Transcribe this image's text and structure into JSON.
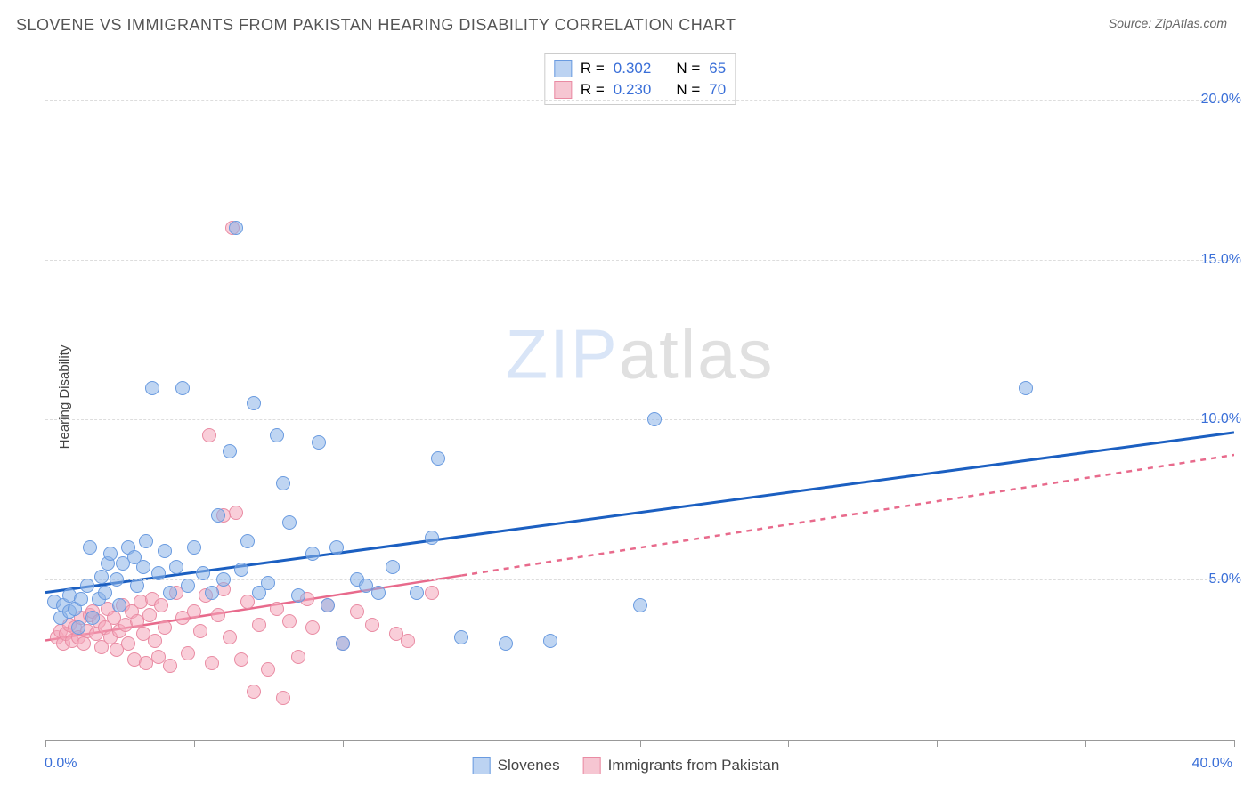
{
  "header": {
    "title": "SLOVENE VS IMMIGRANTS FROM PAKISTAN HEARING DISABILITY CORRELATION CHART",
    "source": "Source: ZipAtlas.com"
  },
  "watermark": {
    "part1": "ZIP",
    "part2": "atlas"
  },
  "axes": {
    "ylabel": "Hearing Disability",
    "xlim": [
      0,
      40
    ],
    "ylim": [
      0,
      21.5
    ],
    "yticks": [
      5,
      10,
      15,
      20
    ],
    "ytick_labels": [
      "5.0%",
      "10.0%",
      "15.0%",
      "20.0%"
    ],
    "xticks": [
      0,
      5,
      10,
      15,
      20,
      25,
      30,
      35,
      40
    ],
    "xtick_label_left": "0.0%",
    "xtick_label_right": "40.0%",
    "grid_color": "#dddddd",
    "axis_color": "#999999"
  },
  "series": {
    "slovenes": {
      "label": "Slovenes",
      "color_fill": "rgba(138,179,232,0.55)",
      "color_stroke": "#6a9be0",
      "swatch_fill": "#bcd3f2",
      "swatch_border": "#6a9be0",
      "r_label": "R =",
      "r_value": "0.302",
      "n_label": "N =",
      "n_value": "65",
      "trend": {
        "x1": 0,
        "y1": 4.6,
        "x2": 40,
        "y2": 9.6,
        "solid_until_x": 40,
        "stroke": "#1b5fc1",
        "width": 3
      },
      "points": [
        [
          0.3,
          4.3
        ],
        [
          0.5,
          3.8
        ],
        [
          0.6,
          4.2
        ],
        [
          0.8,
          4.5
        ],
        [
          0.8,
          4.0
        ],
        [
          1.0,
          4.1
        ],
        [
          1.1,
          3.5
        ],
        [
          1.2,
          4.4
        ],
        [
          1.4,
          4.8
        ],
        [
          1.5,
          6.0
        ],
        [
          1.6,
          3.8
        ],
        [
          1.8,
          4.4
        ],
        [
          1.9,
          5.1
        ],
        [
          2.0,
          4.6
        ],
        [
          2.1,
          5.5
        ],
        [
          2.2,
          5.8
        ],
        [
          2.4,
          5.0
        ],
        [
          2.5,
          4.2
        ],
        [
          2.6,
          5.5
        ],
        [
          2.8,
          6.0
        ],
        [
          3.0,
          5.7
        ],
        [
          3.1,
          4.8
        ],
        [
          3.3,
          5.4
        ],
        [
          3.4,
          6.2
        ],
        [
          3.6,
          11.0
        ],
        [
          3.8,
          5.2
        ],
        [
          4.0,
          5.9
        ],
        [
          4.2,
          4.6
        ],
        [
          4.4,
          5.4
        ],
        [
          4.6,
          11.0
        ],
        [
          4.8,
          4.8
        ],
        [
          5.0,
          6.0
        ],
        [
          5.3,
          5.2
        ],
        [
          5.6,
          4.6
        ],
        [
          5.8,
          7.0
        ],
        [
          6.0,
          5.0
        ],
        [
          6.2,
          9.0
        ],
        [
          6.4,
          16.0
        ],
        [
          6.6,
          5.3
        ],
        [
          6.8,
          6.2
        ],
        [
          7.0,
          10.5
        ],
        [
          7.2,
          4.6
        ],
        [
          7.5,
          4.9
        ],
        [
          7.8,
          9.5
        ],
        [
          8.0,
          8.0
        ],
        [
          8.2,
          6.8
        ],
        [
          8.5,
          4.5
        ],
        [
          9.0,
          5.8
        ],
        [
          9.2,
          9.3
        ],
        [
          9.5,
          4.2
        ],
        [
          9.8,
          6.0
        ],
        [
          10.0,
          3.0
        ],
        [
          10.5,
          5.0
        ],
        [
          10.8,
          4.8
        ],
        [
          11.2,
          4.6
        ],
        [
          11.7,
          5.4
        ],
        [
          12.5,
          4.6
        ],
        [
          13.0,
          6.3
        ],
        [
          13.2,
          8.8
        ],
        [
          14.0,
          3.2
        ],
        [
          15.5,
          3.0
        ],
        [
          17.0,
          3.1
        ],
        [
          20.0,
          4.2
        ],
        [
          20.5,
          10.0
        ],
        [
          33.0,
          11.0
        ]
      ]
    },
    "pakistan": {
      "label": "Immigrants from Pakistan",
      "color_fill": "rgba(244,166,185,0.55)",
      "color_stroke": "#e98ba3",
      "swatch_fill": "#f6c6d2",
      "swatch_border": "#e98ba3",
      "r_label": "R =",
      "r_value": "0.230",
      "n_label": "N =",
      "n_value": "70",
      "trend": {
        "x1": 0,
        "y1": 3.1,
        "x2": 40,
        "y2": 8.9,
        "solid_until_x": 14,
        "stroke": "#e86a8c",
        "width": 2.5,
        "dash": "6,6"
      },
      "points": [
        [
          0.4,
          3.2
        ],
        [
          0.5,
          3.4
        ],
        [
          0.6,
          3.0
        ],
        [
          0.7,
          3.3
        ],
        [
          0.8,
          3.6
        ],
        [
          0.9,
          3.1
        ],
        [
          1.0,
          3.5
        ],
        [
          1.1,
          3.2
        ],
        [
          1.2,
          3.8
        ],
        [
          1.3,
          3.0
        ],
        [
          1.4,
          3.4
        ],
        [
          1.5,
          3.9
        ],
        [
          1.6,
          4.0
        ],
        [
          1.7,
          3.3
        ],
        [
          1.8,
          3.7
        ],
        [
          1.9,
          2.9
        ],
        [
          2.0,
          3.5
        ],
        [
          2.1,
          4.1
        ],
        [
          2.2,
          3.2
        ],
        [
          2.3,
          3.8
        ],
        [
          2.4,
          2.8
        ],
        [
          2.5,
          3.4
        ],
        [
          2.6,
          4.2
        ],
        [
          2.7,
          3.6
        ],
        [
          2.8,
          3.0
        ],
        [
          2.9,
          4.0
        ],
        [
          3.0,
          2.5
        ],
        [
          3.1,
          3.7
        ],
        [
          3.2,
          4.3
        ],
        [
          3.3,
          3.3
        ],
        [
          3.4,
          2.4
        ],
        [
          3.5,
          3.9
        ],
        [
          3.6,
          4.4
        ],
        [
          3.7,
          3.1
        ],
        [
          3.8,
          2.6
        ],
        [
          3.9,
          4.2
        ],
        [
          4.0,
          3.5
        ],
        [
          4.2,
          2.3
        ],
        [
          4.4,
          4.6
        ],
        [
          4.6,
          3.8
        ],
        [
          4.8,
          2.7
        ],
        [
          5.0,
          4.0
        ],
        [
          5.2,
          3.4
        ],
        [
          5.4,
          4.5
        ],
        [
          5.6,
          2.4
        ],
        [
          5.8,
          3.9
        ],
        [
          6.0,
          4.7
        ],
        [
          6.2,
          3.2
        ],
        [
          6.4,
          7.1
        ],
        [
          6.6,
          2.5
        ],
        [
          6.8,
          4.3
        ],
        [
          7.0,
          1.5
        ],
        [
          7.2,
          3.6
        ],
        [
          7.5,
          2.2
        ],
        [
          7.8,
          4.1
        ],
        [
          8.0,
          1.3
        ],
        [
          5.5,
          9.5
        ],
        [
          6.0,
          7.0
        ],
        [
          8.2,
          3.7
        ],
        [
          8.5,
          2.6
        ],
        [
          8.8,
          4.4
        ],
        [
          9.0,
          3.5
        ],
        [
          9.5,
          4.2
        ],
        [
          10.0,
          3.0
        ],
        [
          10.5,
          4.0
        ],
        [
          11.0,
          3.6
        ],
        [
          11.8,
          3.3
        ],
        [
          12.2,
          3.1
        ],
        [
          6.3,
          16.0
        ],
        [
          13.0,
          4.6
        ]
      ]
    }
  },
  "legend_value_color": "#3a6fd8",
  "legend_text_color": "#555555"
}
